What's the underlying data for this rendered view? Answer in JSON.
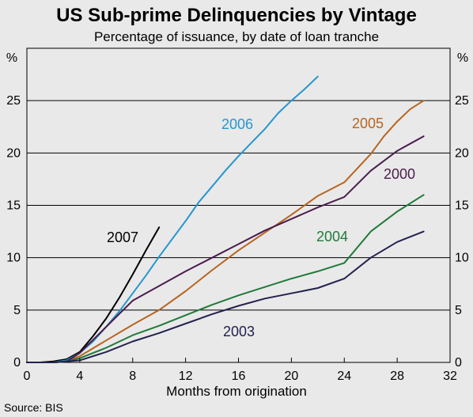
{
  "chart_data": {
    "type": "line",
    "title": "US Sub-prime Delinquencies by Vintage",
    "subtitle": "Percentage of issuance, by date of loan tranche",
    "xlabel": "Months from origination",
    "ylabel_left": "%",
    "ylabel_right": "%",
    "source": "Source: BIS",
    "xlim": [
      0,
      32
    ],
    "ylim": [
      0,
      30
    ],
    "x_ticks": [
      "0",
      "4",
      "8",
      "12",
      "16",
      "20",
      "24",
      "28",
      "32"
    ],
    "y_ticks": [
      "0",
      "5",
      "10",
      "15",
      "20",
      "25"
    ],
    "grid": true,
    "series": [
      {
        "name": "2007",
        "color": "#000000",
        "x": [
          0,
          1,
          2,
          3,
          4,
          5,
          6,
          7,
          8,
          9,
          10
        ],
        "values": [
          0,
          0,
          0.1,
          0.3,
          1.0,
          2.5,
          4.2,
          6.2,
          8.4,
          10.7,
          12.9
        ]
      },
      {
        "name": "2006",
        "color": "#2596cf",
        "x": [
          0,
          1,
          2,
          3,
          4,
          5,
          6,
          7,
          8,
          9,
          10,
          11,
          12,
          13,
          14,
          15,
          16,
          17,
          18,
          19,
          20,
          21,
          22
        ],
        "values": [
          0,
          0,
          0,
          0.2,
          0.9,
          2.0,
          3.4,
          4.9,
          6.6,
          8.3,
          10.1,
          11.8,
          13.5,
          15.3,
          16.8,
          18.3,
          19.7,
          21.0,
          22.3,
          23.8,
          25.0,
          26.1,
          27.3
        ]
      },
      {
        "name": "2005",
        "color": "#b7651f",
        "x": [
          0,
          2,
          3,
          4,
          6,
          8,
          10,
          12,
          14,
          16,
          18,
          20,
          22,
          24,
          26,
          27,
          28,
          29,
          30
        ],
        "values": [
          0,
          0,
          0.1,
          0.6,
          2.1,
          3.6,
          5.0,
          6.8,
          8.8,
          10.7,
          12.4,
          14.1,
          15.9,
          17.2,
          19.9,
          21.6,
          23.0,
          24.2,
          25.0
        ]
      },
      {
        "name": "2000",
        "color": "#4a1d4d",
        "x": [
          0,
          2,
          3,
          4,
          6,
          8,
          10,
          12,
          14,
          16,
          18,
          20,
          22,
          24,
          26,
          28,
          30
        ],
        "values": [
          0,
          0,
          0.1,
          0.9,
          3.4,
          5.9,
          7.3,
          8.7,
          10.0,
          11.3,
          12.6,
          13.7,
          14.8,
          15.8,
          18.3,
          20.2,
          21.6
        ]
      },
      {
        "name": "2004",
        "color": "#1f7a3a",
        "x": [
          0,
          2,
          3,
          4,
          6,
          8,
          10,
          12,
          14,
          16,
          18,
          20,
          22,
          24,
          26,
          28,
          30
        ],
        "values": [
          0,
          0,
          0.1,
          0.4,
          1.4,
          2.6,
          3.5,
          4.5,
          5.5,
          6.4,
          7.2,
          8.0,
          8.7,
          9.5,
          12.5,
          14.4,
          16.0
        ]
      },
      {
        "name": "2003",
        "color": "#23214f",
        "x": [
          0,
          2,
          3,
          4,
          6,
          8,
          10,
          12,
          14,
          16,
          18,
          20,
          22,
          24,
          26,
          28,
          30
        ],
        "values": [
          0,
          0,
          0.1,
          0.2,
          1.0,
          2.0,
          2.8,
          3.7,
          4.6,
          5.4,
          6.1,
          6.6,
          7.1,
          8.0,
          10.0,
          11.5,
          12.5
        ]
      }
    ]
  }
}
